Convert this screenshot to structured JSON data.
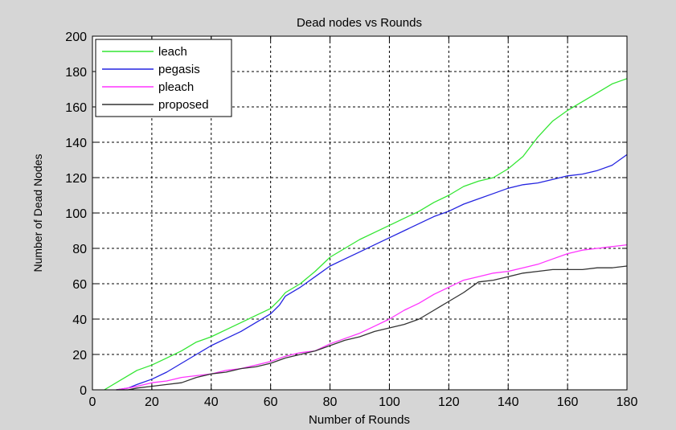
{
  "chart_data": {
    "type": "line",
    "title": "Dead nodes vs Rounds",
    "xlabel": "Number of Rounds",
    "ylabel": "Number of Dead Nodes",
    "xlim": [
      0,
      180
    ],
    "ylim": [
      0,
      200
    ],
    "xticks": [
      0,
      20,
      40,
      60,
      80,
      100,
      120,
      140,
      160,
      180
    ],
    "yticks": [
      0,
      20,
      40,
      60,
      80,
      100,
      120,
      140,
      160,
      180,
      200
    ],
    "grid": true,
    "legend_position": "top-left",
    "series": [
      {
        "name": "leach",
        "color": "#33e633",
        "x": [
          4,
          10,
          15,
          20,
          25,
          30,
          35,
          40,
          45,
          50,
          55,
          60,
          63,
          65,
          70,
          75,
          80,
          85,
          90,
          95,
          100,
          105,
          110,
          115,
          120,
          125,
          130,
          135,
          140,
          145,
          150,
          155,
          160,
          165,
          170,
          175,
          180
        ],
        "y": [
          0,
          6,
          11,
          14,
          18,
          22,
          27,
          30,
          34,
          38,
          42,
          46,
          51,
          55,
          60,
          67,
          75,
          80,
          85,
          89,
          93,
          97,
          101,
          106,
          110,
          115,
          118,
          120,
          125,
          132,
          143,
          152,
          158,
          163,
          168,
          173,
          176
        ]
      },
      {
        "name": "pegasis",
        "color": "#2424e0",
        "x": [
          8,
          12,
          15,
          20,
          25,
          30,
          35,
          40,
          45,
          50,
          55,
          60,
          63,
          65,
          70,
          75,
          80,
          85,
          90,
          95,
          100,
          105,
          110,
          115,
          120,
          125,
          130,
          135,
          140,
          145,
          150,
          155,
          160,
          165,
          170,
          175,
          180
        ],
        "y": [
          0,
          1,
          3,
          6,
          10,
          15,
          20,
          25,
          29,
          33,
          38,
          43,
          48,
          53,
          58,
          64,
          70,
          74,
          78,
          82,
          86,
          90,
          94,
          98,
          101,
          105,
          108,
          111,
          114,
          116,
          117,
          119,
          121,
          122,
          124,
          127,
          133
        ]
      },
      {
        "name": "pleach",
        "color": "#ff33ff",
        "x": [
          8,
          12,
          15,
          20,
          25,
          30,
          35,
          40,
          45,
          50,
          55,
          60,
          65,
          70,
          75,
          80,
          85,
          90,
          95,
          100,
          105,
          110,
          115,
          120,
          125,
          130,
          135,
          140,
          145,
          150,
          155,
          160,
          165,
          170,
          175,
          180
        ],
        "y": [
          0,
          1,
          2,
          4,
          5,
          7,
          8,
          9,
          11,
          12,
          14,
          16,
          19,
          21,
          22,
          26,
          29,
          32,
          36,
          40,
          45,
          49,
          54,
          58,
          62,
          64,
          66,
          67,
          69,
          71,
          74,
          77,
          79,
          80,
          81,
          82
        ]
      },
      {
        "name": "proposed",
        "color": "#333333",
        "x": [
          8,
          12,
          15,
          20,
          25,
          30,
          35,
          40,
          45,
          50,
          55,
          60,
          65,
          70,
          75,
          80,
          85,
          90,
          95,
          100,
          105,
          110,
          115,
          120,
          125,
          130,
          135,
          140,
          145,
          150,
          155,
          160,
          165,
          170,
          175,
          180
        ],
        "y": [
          0,
          0,
          1,
          2,
          3,
          4,
          7,
          9,
          10,
          12,
          13,
          15,
          18,
          20,
          22,
          25,
          28,
          30,
          33,
          35,
          37,
          40,
          45,
          50,
          55,
          61,
          62,
          64,
          66,
          67,
          68,
          68,
          68,
          69,
          69,
          70
        ]
      }
    ]
  }
}
